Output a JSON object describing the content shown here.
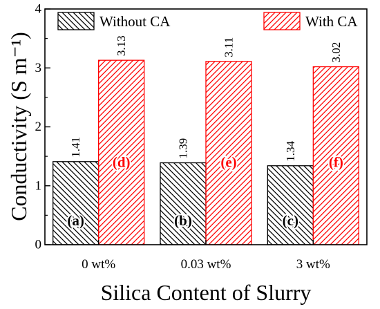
{
  "chart_data": {
    "type": "bar",
    "categories": [
      "0 wt%",
      "0.03 wt%",
      "3 wt%"
    ],
    "series": [
      {
        "name": "Without CA",
        "values": [
          1.41,
          1.39,
          1.34
        ],
        "value_labels": [
          "1.41",
          "1.39",
          "1.34"
        ],
        "bar_labels": [
          "(a)",
          "(b)",
          "(c)"
        ],
        "color": "#000000",
        "hatch": "diagonal-down"
      },
      {
        "name": "With CA",
        "values": [
          3.13,
          3.11,
          3.02
        ],
        "value_labels": [
          "3.13",
          "3.11",
          "3.02"
        ],
        "bar_labels": [
          "(d)",
          "(e)",
          "(f)"
        ],
        "color": "#ff0000",
        "hatch": "diagonal-up"
      }
    ],
    "xlabel": "Silica Content of Slurry",
    "ylabel": "Conductivity (S m⁻¹)",
    "ylim": [
      0,
      4
    ],
    "yticks": [
      "0",
      "1",
      "2",
      "3",
      "4"
    ],
    "legend": "top",
    "grid": false
  }
}
